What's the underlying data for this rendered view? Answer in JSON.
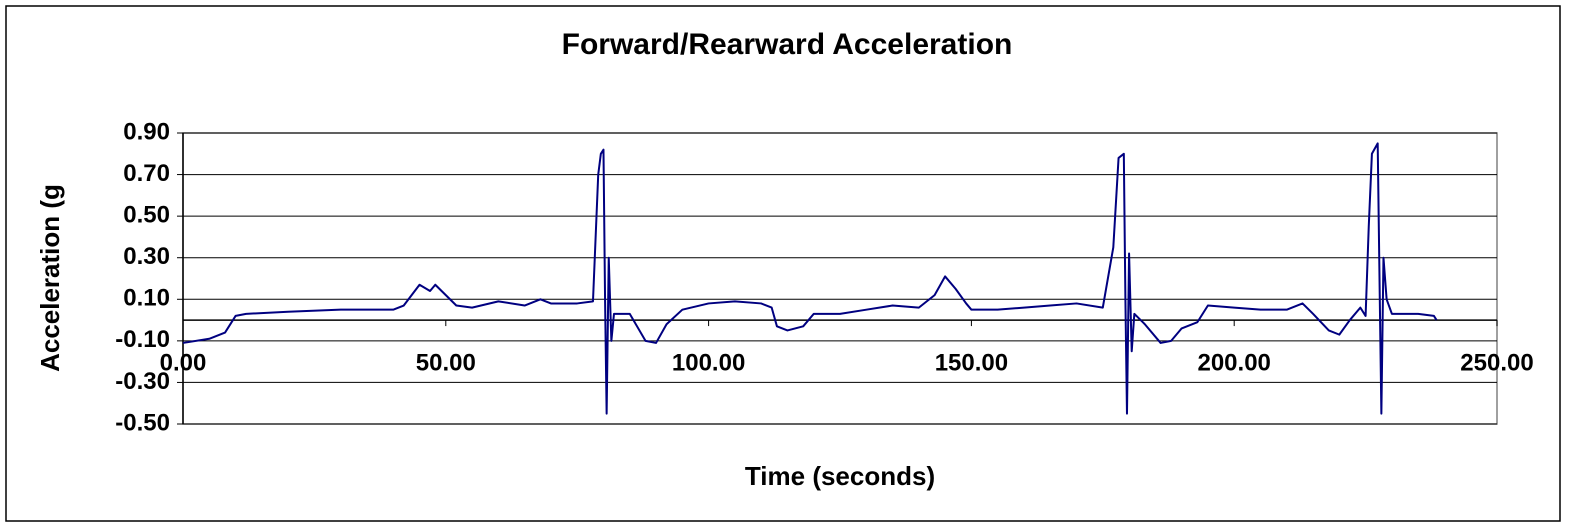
{
  "chart_data": {
    "type": "line",
    "title": "Forward/Rearward Acceleration",
    "x_label": "Time (seconds)",
    "y_label": "Acceleration (g",
    "color": "#000080",
    "grid": true,
    "x": [
      0,
      5,
      8,
      10,
      12,
      20,
      30,
      40,
      42,
      45,
      47,
      48,
      50,
      52,
      55,
      60,
      65,
      68,
      70,
      75,
      78,
      79,
      79.5,
      80,
      80.3,
      80.6,
      81,
      81.5,
      82,
      85,
      88,
      90,
      92,
      95,
      100,
      105,
      110,
      112,
      113,
      115,
      118,
      120,
      125,
      130,
      135,
      140,
      143,
      145,
      147,
      149,
      150,
      155,
      160,
      165,
      170,
      175,
      177,
      178,
      179,
      179.3,
      179.6,
      180,
      180.5,
      181,
      183,
      186,
      188,
      190,
      193,
      195,
      200,
      205,
      210,
      213,
      215,
      218,
      220,
      222,
      224,
      225,
      225.6,
      226.2,
      227.3,
      227.7,
      228,
      228.4,
      229,
      230,
      235,
      238,
      238.5
    ],
    "values": [
      -0.11,
      -0.09,
      -0.06,
      0.02,
      0.03,
      0.04,
      0.05,
      0.05,
      0.07,
      0.17,
      0.14,
      0.17,
      0.12,
      0.07,
      0.06,
      0.09,
      0.07,
      0.1,
      0.08,
      0.08,
      0.09,
      0.7,
      0.8,
      0.82,
      0.1,
      -0.45,
      0.3,
      -0.1,
      0.03,
      0.03,
      -0.1,
      -0.11,
      -0.02,
      0.05,
      0.08,
      0.09,
      0.08,
      0.06,
      -0.03,
      -0.05,
      -0.03,
      0.03,
      0.03,
      0.05,
      0.07,
      0.06,
      0.12,
      0.21,
      0.15,
      0.08,
      0.05,
      0.05,
      0.06,
      0.07,
      0.08,
      0.06,
      0.35,
      0.78,
      0.8,
      0.1,
      -0.45,
      0.32,
      -0.15,
      0.03,
      -0.02,
      -0.11,
      -0.1,
      -0.04,
      -0.01,
      0.07,
      0.06,
      0.05,
      0.05,
      0.08,
      0.03,
      -0.05,
      -0.07,
      0.0,
      0.06,
      0.02,
      0.45,
      0.8,
      0.85,
      0.1,
      -0.45,
      0.3,
      0.1,
      0.03,
      0.03,
      0.02,
      0.0
    ],
    "xlim": [
      0,
      250
    ],
    "xticks": [
      {
        "value": 0,
        "label": "0.00"
      },
      {
        "value": 50,
        "label": "50.00"
      },
      {
        "value": 100,
        "label": "100.00"
      },
      {
        "value": 150,
        "label": "150.00"
      },
      {
        "value": 200,
        "label": "200.00"
      },
      {
        "value": 250,
        "label": "250.00"
      }
    ],
    "ylim": [
      -0.5,
      0.9
    ],
    "yticks": [
      {
        "value": -0.5,
        "label": "-0.50"
      },
      {
        "value": -0.3,
        "label": "-0.30"
      },
      {
        "value": -0.1,
        "label": "-0.10"
      },
      {
        "value": 0.1,
        "label": "0.10"
      },
      {
        "value": 0.3,
        "label": "0.30"
      },
      {
        "value": 0.5,
        "label": "0.50"
      },
      {
        "value": 0.7,
        "label": "0.70"
      },
      {
        "value": 0.9,
        "label": "0.90"
      }
    ]
  }
}
